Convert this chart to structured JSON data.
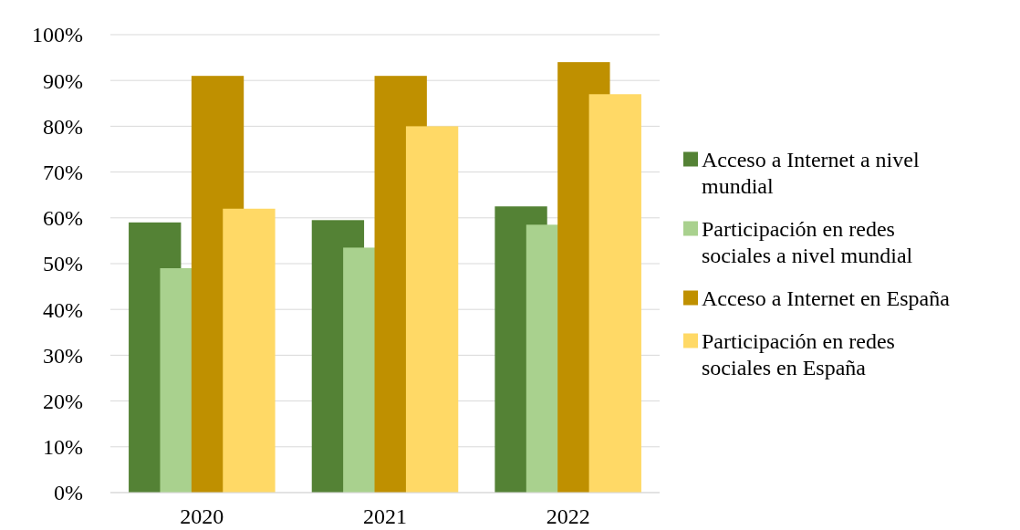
{
  "chart_data": {
    "type": "bar",
    "categories": [
      "2020",
      "2021",
      "2022"
    ],
    "series": [
      {
        "name": "Acceso a Internet a nivel mundial",
        "color": "#548235",
        "values": [
          59,
          59.5,
          62.5
        ]
      },
      {
        "name": "Participación en redes sociales a nivel mundial",
        "color": "#a9d18e",
        "values": [
          49,
          53.5,
          58.5
        ]
      },
      {
        "name": "Acceso a Internet en España",
        "color": "#bf9000",
        "values": [
          91,
          91,
          94
        ]
      },
      {
        "name": "Participación en redes sociales en España",
        "color": "#ffd966",
        "values": [
          62,
          80,
          87
        ]
      }
    ],
    "ylim": [
      0,
      100
    ],
    "yticks": [
      {
        "value": 0,
        "label": "0%"
      },
      {
        "value": 10,
        "label": "10%"
      },
      {
        "value": 20,
        "label": "20%"
      },
      {
        "value": 30,
        "label": "30%"
      },
      {
        "value": 40,
        "label": "40%"
      },
      {
        "value": 50,
        "label": "50%"
      },
      {
        "value": 60,
        "label": "60%"
      },
      {
        "value": 70,
        "label": "70%"
      },
      {
        "value": 80,
        "label": "80%"
      },
      {
        "value": 90,
        "label": "90%"
      },
      {
        "value": 100,
        "label": "100%"
      }
    ],
    "grid": "y",
    "legend": "right"
  }
}
